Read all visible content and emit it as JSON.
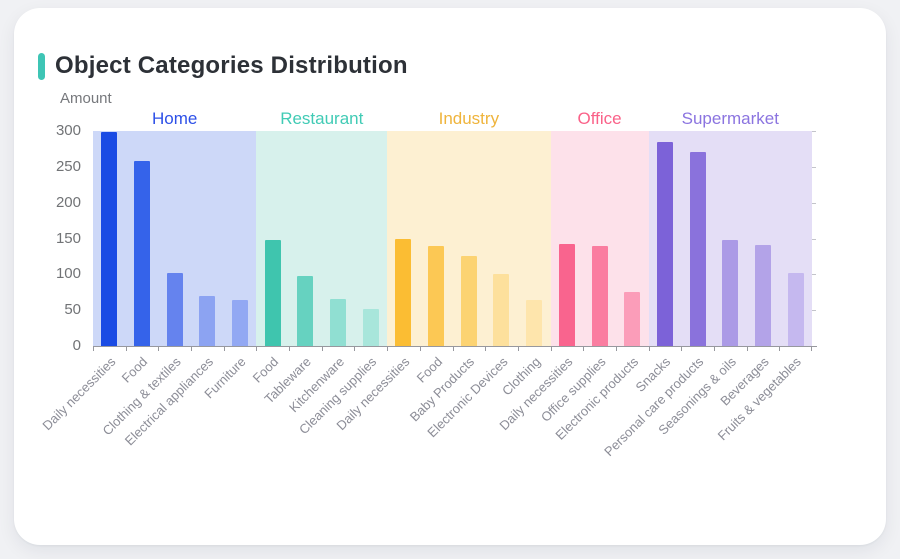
{
  "header": {
    "title": "Object Categories Distribution"
  },
  "colors": {
    "page_bg": "#f0f1f4",
    "card_bg": "#ffffff",
    "title_color": "#2d3137",
    "accent": "#3ec5b5",
    "axis": "#97989e",
    "y_label": "#717376",
    "x_label": "#8c8d97",
    "amount": "#76787c"
  },
  "chart_data": {
    "type": "bar",
    "title": "Object Categories Distribution",
    "xlabel": "",
    "ylabel": "Amount",
    "ylim": [
      0,
      300
    ],
    "yticks": [
      0,
      50,
      100,
      150,
      200,
      250,
      300
    ],
    "grid": false,
    "legend_position": "none",
    "groups": [
      {
        "name": "Home",
        "label_color": "#2d50e8",
        "band_color": "#cdd8f8",
        "bars": [
          {
            "label": "Daily necessities",
            "value": 298,
            "color": "#1a4be4"
          },
          {
            "label": "Food",
            "value": 258,
            "color": "#3563ea"
          },
          {
            "label": "Clothing & textiles",
            "value": 102,
            "color": "#6583ee"
          },
          {
            "label": "Electrical appliances",
            "value": 70,
            "color": "#8ca3f2"
          },
          {
            "label": "Furniture",
            "value": 64,
            "color": "#92a8f3"
          }
        ]
      },
      {
        "name": "Restaurant",
        "label_color": "#41cbb5",
        "band_color": "#d7f1ec",
        "bars": [
          {
            "label": "Food",
            "value": 148,
            "color": "#3fc5ae"
          },
          {
            "label": "Tableware",
            "value": 97,
            "color": "#66d2c0"
          },
          {
            "label": "Kitchenware",
            "value": 65,
            "color": "#90dfd2"
          },
          {
            "label": "Cleaning supplies",
            "value": 51,
            "color": "#a8e6db"
          }
        ]
      },
      {
        "name": "Industry",
        "label_color": "#efb43c",
        "band_color": "#fdf0d2",
        "bars": [
          {
            "label": "Daily necessities",
            "value": 150,
            "color": "#fbbd33"
          },
          {
            "label": "Food",
            "value": 139,
            "color": "#fcc854"
          },
          {
            "label": "Baby Products",
            "value": 126,
            "color": "#fcd372"
          },
          {
            "label": "Electronic Devices",
            "value": 100,
            "color": "#fde09c"
          },
          {
            "label": "Clothing",
            "value": 64,
            "color": "#fee5ac"
          }
        ]
      },
      {
        "name": "Office",
        "label_color": "#fa6289",
        "band_color": "#fde1ea",
        "bars": [
          {
            "label": "Daily necessities",
            "value": 142,
            "color": "#f9648e"
          },
          {
            "label": "Office supplies",
            "value": 139,
            "color": "#fa7da0"
          },
          {
            "label": "Electronic products",
            "value": 76,
            "color": "#fb9db9"
          }
        ]
      },
      {
        "name": "Supermarket",
        "label_color": "#8b74e0",
        "band_color": "#e4def6",
        "bars": [
          {
            "label": "Snacks",
            "value": 285,
            "color": "#7c62d8"
          },
          {
            "label": "Personal care products",
            "value": 271,
            "color": "#8a72dc"
          },
          {
            "label": "Seasonings & oils",
            "value": 148,
            "color": "#ab9ae6"
          },
          {
            "label": "Beverages",
            "value": 141,
            "color": "#b3a3e8"
          },
          {
            "label": "Fruits & vegetables",
            "value": 102,
            "color": "#c5b8ef"
          }
        ]
      }
    ]
  }
}
